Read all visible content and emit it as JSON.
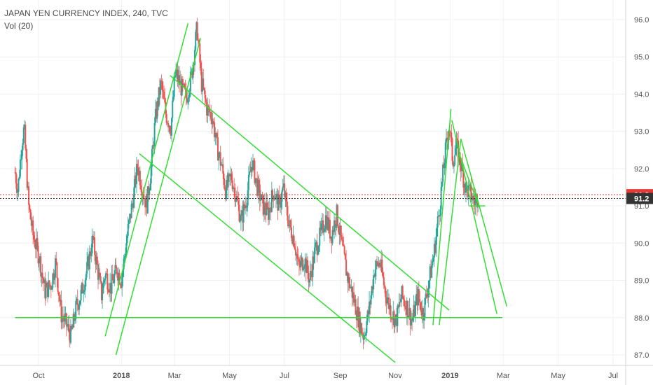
{
  "legend": {
    "title": "JAPAN YEN CURRENCY INDEX, 240, TVC",
    "volume": "Vol (20)"
  },
  "colors": {
    "up": "#26a69a",
    "down": "#ef5350",
    "trendline": "#33dd33",
    "grid": "#eef0f3",
    "axis_text": "#555555",
    "price_line_red": "#e53935",
    "price_line_dark": "#333333"
  },
  "chart_data": {
    "type": "candlestick",
    "title": "JAPAN YEN CURRENCY INDEX, 240, TVC",
    "xlabel": "",
    "ylabel": "",
    "ylim": [
      86.8,
      96.2
    ],
    "x_range": [
      "2017-09-05",
      "2019-07-31"
    ],
    "y_ticks": [
      "96.0",
      "95.0",
      "94.0",
      "93.0",
      "92.0",
      "91.0",
      "90.0",
      "89.0",
      "88.0",
      "87.0"
    ],
    "x_ticks": [
      {
        "label": "Oct",
        "date": "2017-10-01",
        "bold": false
      },
      {
        "label": "2018",
        "date": "2018-01-01",
        "bold": true
      },
      {
        "label": "Mar",
        "date": "2018-03-01",
        "bold": false
      },
      {
        "label": "May",
        "date": "2018-05-01",
        "bold": false
      },
      {
        "label": "Jul",
        "date": "2018-07-01",
        "bold": false
      },
      {
        "label": "Sep",
        "date": "2018-09-01",
        "bold": false
      },
      {
        "label": "Nov",
        "date": "2018-11-01",
        "bold": false
      },
      {
        "label": "2019",
        "date": "2019-01-01",
        "bold": true
      },
      {
        "label": "Mar",
        "date": "2019-03-01",
        "bold": false
      },
      {
        "label": "May",
        "date": "2019-05-01",
        "bold": false
      },
      {
        "label": "Jul",
        "date": "2019-07-01",
        "bold": false
      }
    ],
    "price_path": [
      [
        "2017-09-05",
        91.9
      ],
      [
        "2017-09-08",
        91.4
      ],
      [
        "2017-09-12",
        92.6
      ],
      [
        "2017-09-15",
        93.1
      ],
      [
        "2017-09-20",
        91.0
      ],
      [
        "2017-09-25",
        90.2
      ],
      [
        "2017-10-02",
        89.6
      ],
      [
        "2017-10-08",
        88.7
      ],
      [
        "2017-10-15",
        88.9
      ],
      [
        "2017-10-20",
        89.5
      ],
      [
        "2017-10-26",
        88.1
      ],
      [
        "2017-11-01",
        87.8
      ],
      [
        "2017-11-06",
        87.5
      ],
      [
        "2017-11-12",
        88.3
      ],
      [
        "2017-11-17",
        88.6
      ],
      [
        "2017-11-24",
        89.3
      ],
      [
        "2017-11-30",
        90.1
      ],
      [
        "2017-12-05",
        89.4
      ],
      [
        "2017-12-10",
        88.6
      ],
      [
        "2017-12-14",
        89.2
      ],
      [
        "2017-12-20",
        88.8
      ],
      [
        "2017-12-27",
        89.3
      ],
      [
        "2018-01-01",
        89.0
      ],
      [
        "2018-01-08",
        90.3
      ],
      [
        "2018-01-14",
        91.2
      ],
      [
        "2018-01-19",
        92.1
      ],
      [
        "2018-01-24",
        91.5
      ],
      [
        "2018-01-29",
        91.0
      ],
      [
        "2018-02-03",
        92.0
      ],
      [
        "2018-02-08",
        93.4
      ],
      [
        "2018-02-14",
        94.3
      ],
      [
        "2018-02-19",
        93.5
      ],
      [
        "2018-02-25",
        93.1
      ],
      [
        "2018-03-02",
        94.6
      ],
      [
        "2018-03-08",
        94.2
      ],
      [
        "2018-03-14",
        93.9
      ],
      [
        "2018-03-20",
        94.5
      ],
      [
        "2018-03-26",
        95.8
      ],
      [
        "2018-03-31",
        94.3
      ],
      [
        "2018-04-06",
        93.6
      ],
      [
        "2018-04-12",
        93.4
      ],
      [
        "2018-04-17",
        92.6
      ],
      [
        "2018-04-22",
        92.1
      ],
      [
        "2018-04-27",
        91.4
      ],
      [
        "2018-05-03",
        91.8
      ],
      [
        "2018-05-08",
        91.3
      ],
      [
        "2018-05-14",
        90.6
      ],
      [
        "2018-05-20",
        91.2
      ],
      [
        "2018-05-26",
        92.2
      ],
      [
        "2018-06-01",
        91.5
      ],
      [
        "2018-06-07",
        91.0
      ],
      [
        "2018-06-13",
        90.8
      ],
      [
        "2018-06-19",
        91.4
      ],
      [
        "2018-06-25",
        91.0
      ],
      [
        "2018-06-30",
        91.5
      ],
      [
        "2018-07-06",
        90.5
      ],
      [
        "2018-07-12",
        90.1
      ],
      [
        "2018-07-17",
        89.3
      ],
      [
        "2018-07-23",
        89.6
      ],
      [
        "2018-07-29",
        89.0
      ],
      [
        "2018-08-04",
        89.8
      ],
      [
        "2018-08-10",
        90.2
      ],
      [
        "2018-08-16",
        90.7
      ],
      [
        "2018-08-22",
        90.2
      ],
      [
        "2018-08-28",
        90.8
      ],
      [
        "2018-09-03",
        89.9
      ],
      [
        "2018-09-09",
        89.1
      ],
      [
        "2018-09-15",
        88.6
      ],
      [
        "2018-09-21",
        88.0
      ],
      [
        "2018-09-27",
        87.5
      ],
      [
        "2018-10-03",
        88.2
      ],
      [
        "2018-10-09",
        89.3
      ],
      [
        "2018-10-15",
        89.5
      ],
      [
        "2018-10-21",
        88.7
      ],
      [
        "2018-10-27",
        88.2
      ],
      [
        "2018-11-02",
        87.9
      ],
      [
        "2018-11-08",
        88.6
      ],
      [
        "2018-11-14",
        88.3
      ],
      [
        "2018-11-20",
        87.9
      ],
      [
        "2018-11-26",
        88.6
      ],
      [
        "2018-12-02",
        88.1
      ],
      [
        "2018-12-08",
        88.9
      ],
      [
        "2018-12-14",
        89.7
      ],
      [
        "2018-12-20",
        90.9
      ],
      [
        "2018-12-26",
        92.3
      ],
      [
        "2018-12-31",
        93.2
      ],
      [
        "2019-01-04",
        92.2
      ],
      [
        "2019-01-08",
        92.6
      ],
      [
        "2019-01-13",
        92.1
      ],
      [
        "2019-01-18",
        91.5
      ],
      [
        "2019-01-24",
        91.3
      ],
      [
        "2019-01-28",
        91.1
      ],
      [
        "2019-02-01",
        91.25
      ]
    ],
    "price_labels": [
      {
        "label": "91.3",
        "value": 91.3,
        "color": "#e53935"
      },
      {
        "label": "91.2",
        "value": 91.2,
        "color": "#333333"
      }
    ],
    "trendlines": [
      {
        "name": "rising-channel-upper",
        "from": [
          "2017-12-14",
          87.5
        ],
        "to": [
          "2018-03-16",
          95.9
        ]
      },
      {
        "name": "rising-channel-lower",
        "from": [
          "2017-12-26",
          87.0
        ],
        "to": [
          "2018-03-30",
          95.5
        ]
      },
      {
        "name": "falling-channel-upper",
        "from": [
          "2018-02-24",
          94.5
        ],
        "to": [
          "2018-12-31",
          88.2
        ]
      },
      {
        "name": "falling-channel-lower",
        "from": [
          "2018-01-21",
          92.4
        ],
        "to": [
          "2018-11-01",
          86.8
        ]
      },
      {
        "name": "support",
        "from": [
          "2017-09-05",
          88.0
        ],
        "to": [
          "2019-02-28",
          88.0
        ]
      },
      {
        "name": "rally-left",
        "from": [
          "2018-12-13",
          87.8
        ],
        "to": [
          "2019-01-02",
          93.6
        ]
      },
      {
        "name": "rally-right",
        "from": [
          "2018-12-20",
          87.8
        ],
        "to": [
          "2019-01-13",
          92.8
        ]
      },
      {
        "name": "descend-1",
        "from": [
          "2019-01-03",
          93.3
        ],
        "to": [
          "2019-02-22",
          88.1
        ]
      },
      {
        "name": "descend-2",
        "from": [
          "2019-01-13",
          92.8
        ],
        "to": [
          "2019-03-05",
          88.3
        ]
      },
      {
        "name": "descend-3",
        "from": [
          "2019-01-11",
          92.4
        ],
        "to": [
          "2019-02-02",
          91.0
        ]
      },
      {
        "name": "flat-bottom",
        "from": [
          "2019-01-22",
          91.0
        ],
        "to": [
          "2019-02-09",
          91.0
        ]
      }
    ]
  }
}
